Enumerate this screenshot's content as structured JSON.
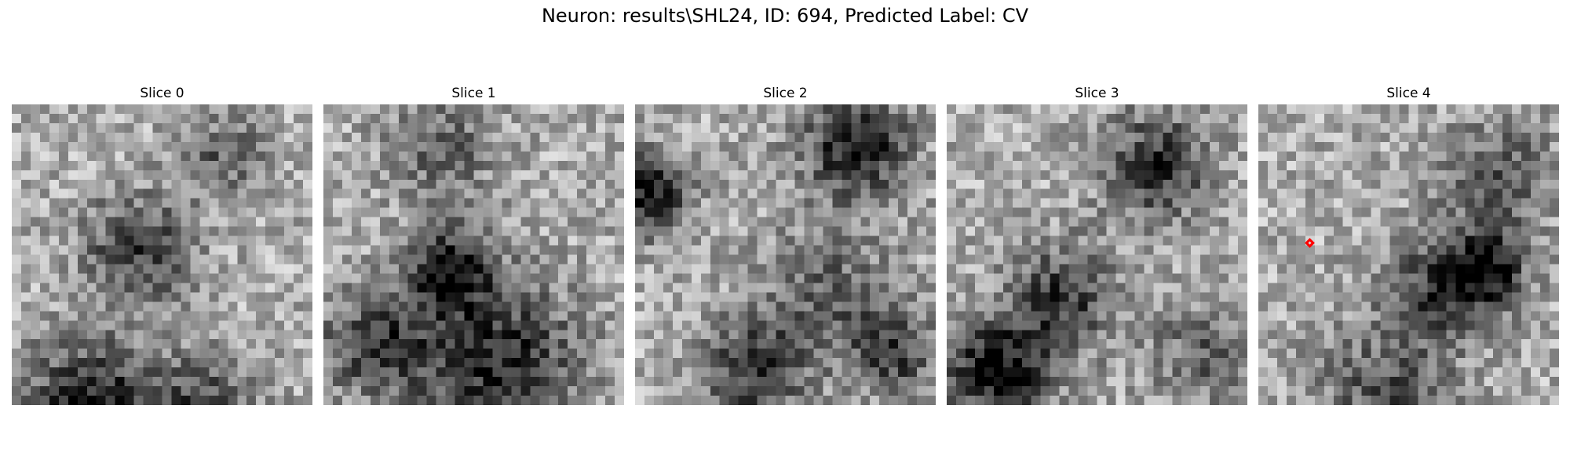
{
  "title": "Neuron: results\\SHL24, ID: 694, Predicted Label: CV",
  "panels": [
    {
      "title": "Slice 0",
      "has_marker": false,
      "seed": 11
    },
    {
      "title": "Slice 1",
      "has_marker": false,
      "seed": 23
    },
    {
      "title": "Slice 2",
      "has_marker": false,
      "seed": 37
    },
    {
      "title": "Slice 3",
      "has_marker": false,
      "seed": 41
    },
    {
      "title": "Slice 4",
      "has_marker": true,
      "seed": 59
    }
  ],
  "marker": {
    "color": "#ff0000",
    "shape": "diamond-outline"
  },
  "colormap": "gray"
}
